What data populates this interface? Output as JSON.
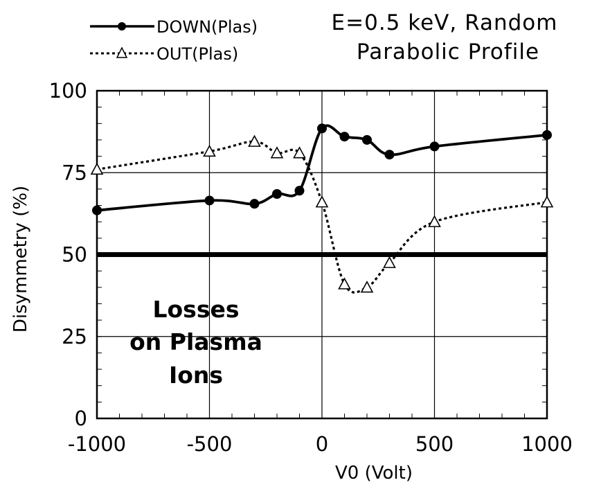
{
  "chart_data": {
    "type": "line",
    "title": [
      "E=0.5 keV, Random",
      "Parabolic Profile"
    ],
    "xlabel": "V0 (Volt)",
    "ylabel": "Disymmetry (%)",
    "xlim": [
      -1000,
      1000
    ],
    "ylim": [
      0,
      100
    ],
    "xticks": [
      -1000,
      -500,
      0,
      500,
      1000
    ],
    "yticks": [
      0,
      25,
      50,
      75,
      100
    ],
    "grid": true,
    "legend_position": "top-left",
    "series": [
      {
        "name": "DOWN(Plas)",
        "marker": "filled-circle",
        "line": "solid",
        "color": "#000000",
        "x": [
          -1000,
          -500,
          -300,
          -200,
          -100,
          0,
          100,
          200,
          300,
          500,
          1000
        ],
        "y": [
          63.5,
          66.5,
          65.5,
          68.5,
          69.5,
          88.5,
          86,
          85,
          80.5,
          83,
          86.5
        ]
      },
      {
        "name": "OUT(Plas)",
        "marker": "open-triangle",
        "line": "dotted",
        "color": "#000000",
        "x": [
          -1000,
          -500,
          -300,
          -200,
          -100,
          0,
          100,
          200,
          300,
          500,
          1000
        ],
        "y": [
          76,
          81.5,
          84.5,
          81,
          81,
          66,
          41,
          40,
          47.5,
          60,
          66
        ]
      }
    ],
    "reference_line": {
      "y": 50
    },
    "annotation": [
      "Losses",
      "on Plasma",
      "Ions"
    ]
  }
}
